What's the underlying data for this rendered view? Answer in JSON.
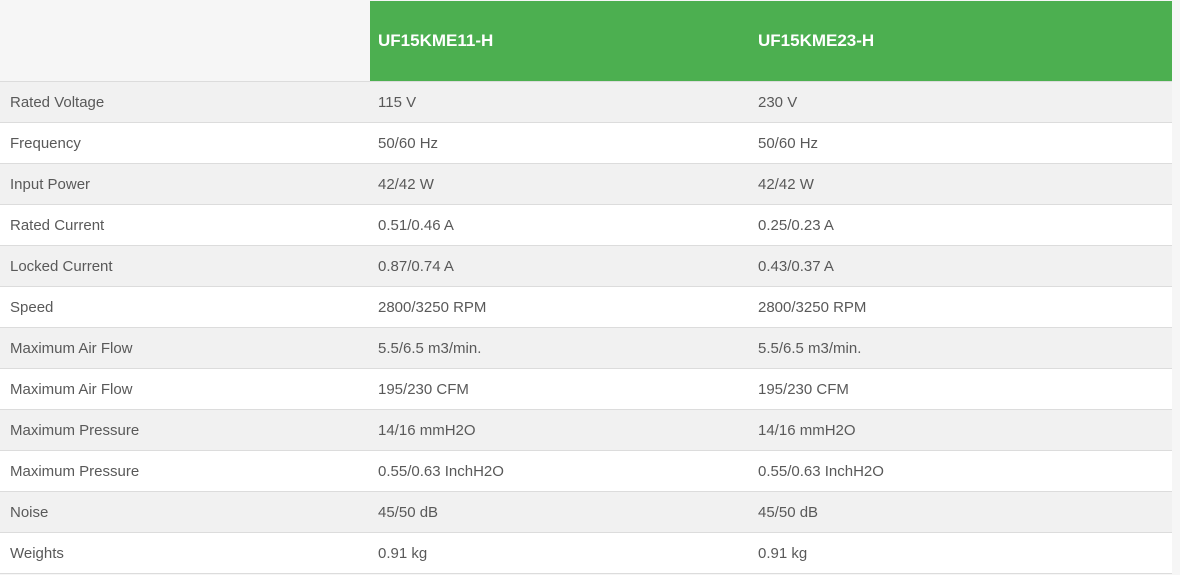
{
  "table": {
    "columns": {
      "label_header": "",
      "model1_header": "UF15KME11-H",
      "model2_header": "UF15KME23-H"
    },
    "rows": [
      {
        "label": "Rated Voltage",
        "model1": "115 V",
        "model2": "230 V"
      },
      {
        "label": "Frequency",
        "model1": "50/60 Hz",
        "model2": "50/60 Hz"
      },
      {
        "label": "Input Power",
        "model1": "42/42 W",
        "model2": "42/42 W"
      },
      {
        "label": "Rated Current",
        "model1": "0.51/0.46 A",
        "model2": "0.25/0.23 A"
      },
      {
        "label": "Locked Current",
        "model1": "0.87/0.74 A",
        "model2": "0.43/0.37 A"
      },
      {
        "label": "Speed",
        "model1": "2800/3250 RPM",
        "model2": "2800/3250 RPM"
      },
      {
        "label": "Maximum Air Flow",
        "model1": "5.5/6.5 m3/min.",
        "model2": "5.5/6.5 m3/min."
      },
      {
        "label": "Maximum Air Flow",
        "model1": "195/230 CFM",
        "model2": "195/230 CFM"
      },
      {
        "label": "Maximum Pressure",
        "model1": "14/16 mmH2O",
        "model2": "14/16 mmH2O"
      },
      {
        "label": "Maximum Pressure",
        "model1": "0.55/0.63 InchH2O",
        "model2": "0.55/0.63 InchH2O"
      },
      {
        "label": "Noise",
        "model1": "45/50 dB",
        "model2": "45/50 dB"
      },
      {
        "label": "Weights",
        "model1": "0.91 kg",
        "model2": "0.91 kg"
      }
    ],
    "colors": {
      "header_bg": "#4caf50",
      "header_text": "#ffffff",
      "row_stripe": "#f1f1f1",
      "row_plain": "#ffffff",
      "border": "#dcdcdc",
      "page_bg": "#f6f6f6",
      "text": "#595959"
    }
  }
}
